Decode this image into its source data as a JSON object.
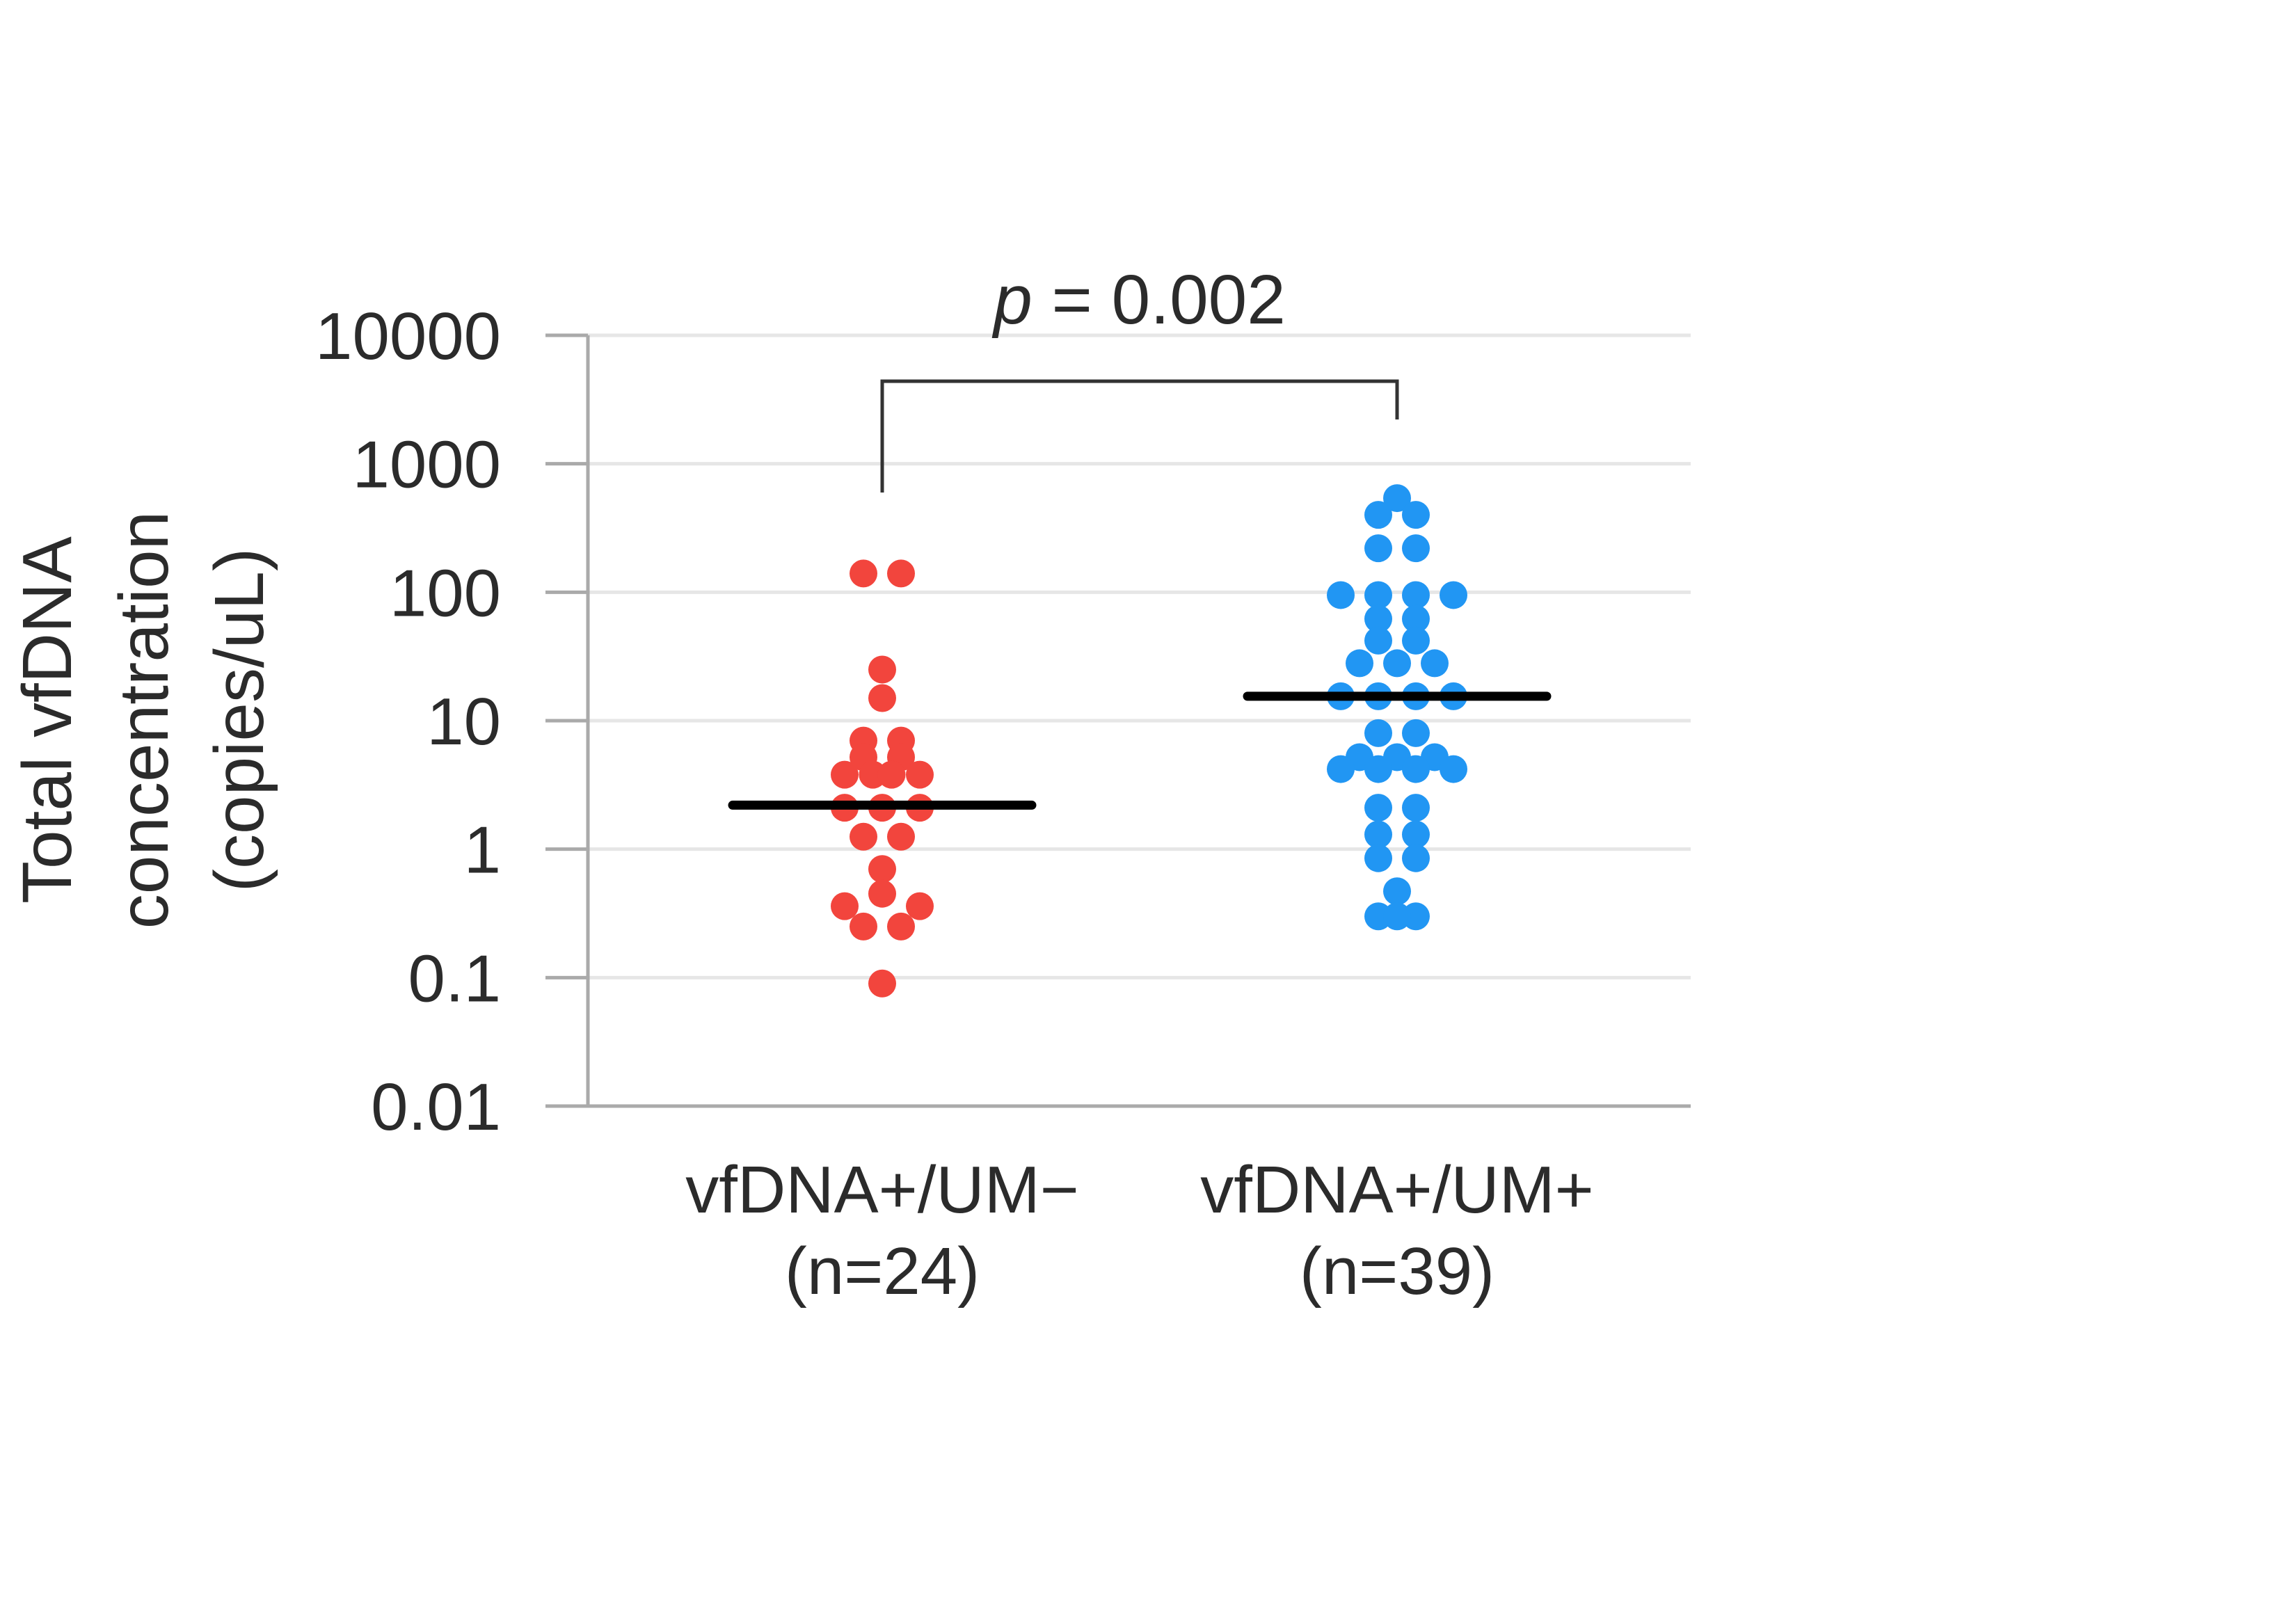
{
  "chart_data": {
    "type": "scatter",
    "y_scale": "log",
    "ylim": [
      0.01,
      10000
    ],
    "yticks": [
      "10000",
      "1000",
      "100",
      "10",
      "1",
      "0.1",
      "0.01"
    ],
    "ylabel": [
      "Total vfDNA",
      "concentration",
      "(copies/uL)"
    ],
    "grid": true,
    "annotation": {
      "p_symbol": "p",
      "p_text": " = 0.002"
    },
    "series": [
      {
        "category": [
          "vfDNA+/UM−",
          "(n=24)"
        ],
        "color": "#f2453d",
        "median": 2.2,
        "points": [
          {
            "y": 140,
            "o": -1
          },
          {
            "y": 140,
            "o": 1
          },
          {
            "y": 25,
            "o": 0
          },
          {
            "y": 15,
            "o": 0
          },
          {
            "y": 7,
            "o": -1
          },
          {
            "y": 7,
            "o": 1
          },
          {
            "y": 5.2,
            "o": -1
          },
          {
            "y": 5.2,
            "o": 1
          },
          {
            "y": 3.8,
            "o": -2
          },
          {
            "y": 3.8,
            "o": -0.5
          },
          {
            "y": 3.8,
            "o": 0.5
          },
          {
            "y": 3.8,
            "o": 2
          },
          {
            "y": 2.1,
            "o": -2
          },
          {
            "y": 2.1,
            "o": 0
          },
          {
            "y": 2.1,
            "o": 2
          },
          {
            "y": 1.25,
            "o": -1
          },
          {
            "y": 1.25,
            "o": 1
          },
          {
            "y": 0.7,
            "o": 0
          },
          {
            "y": 0.45,
            "o": 0
          },
          {
            "y": 0.36,
            "o": -2
          },
          {
            "y": 0.36,
            "o": 2
          },
          {
            "y": 0.25,
            "o": -1
          },
          {
            "y": 0.25,
            "o": 1
          },
          {
            "y": 0.09,
            "o": 0
          }
        ]
      },
      {
        "category": [
          "vfDNA+/UM+",
          "(n=39)"
        ],
        "color": "#2196f3",
        "median": 15.5,
        "points": [
          {
            "y": 540,
            "o": 0
          },
          {
            "y": 400,
            "o": -1
          },
          {
            "y": 400,
            "o": 1
          },
          {
            "y": 220,
            "o": -1
          },
          {
            "y": 220,
            "o": 1
          },
          {
            "y": 95,
            "o": -3
          },
          {
            "y": 95,
            "o": -1
          },
          {
            "y": 95,
            "o": 1
          },
          {
            "y": 95,
            "o": 3
          },
          {
            "y": 62,
            "o": -1
          },
          {
            "y": 62,
            "o": 1
          },
          {
            "y": 42,
            "o": -1
          },
          {
            "y": 42,
            "o": 1
          },
          {
            "y": 28,
            "o": -2
          },
          {
            "y": 28,
            "o": 0
          },
          {
            "y": 28,
            "o": 2
          },
          {
            "y": 15.5,
            "o": -3
          },
          {
            "y": 15.5,
            "o": -1
          },
          {
            "y": 15.5,
            "o": 1
          },
          {
            "y": 15.5,
            "o": 3
          },
          {
            "y": 8,
            "o": -1
          },
          {
            "y": 8,
            "o": 1
          },
          {
            "y": 5.2,
            "o": -2
          },
          {
            "y": 5.2,
            "o": 0
          },
          {
            "y": 5.2,
            "o": 2
          },
          {
            "y": 4.2,
            "o": -3
          },
          {
            "y": 4.2,
            "o": -1
          },
          {
            "y": 4.2,
            "o": 1
          },
          {
            "y": 4.2,
            "o": 3
          },
          {
            "y": 2.1,
            "o": -1
          },
          {
            "y": 2.1,
            "o": 1
          },
          {
            "y": 1.3,
            "o": -1
          },
          {
            "y": 1.3,
            "o": 1
          },
          {
            "y": 0.85,
            "o": -1
          },
          {
            "y": 0.85,
            "o": 1
          },
          {
            "y": 0.47,
            "o": 0
          },
          {
            "y": 0.3,
            "o": -1
          },
          {
            "y": 0.3,
            "o": 1
          },
          {
            "y": 0.3,
            "o": 0
          }
        ]
      }
    ]
  }
}
